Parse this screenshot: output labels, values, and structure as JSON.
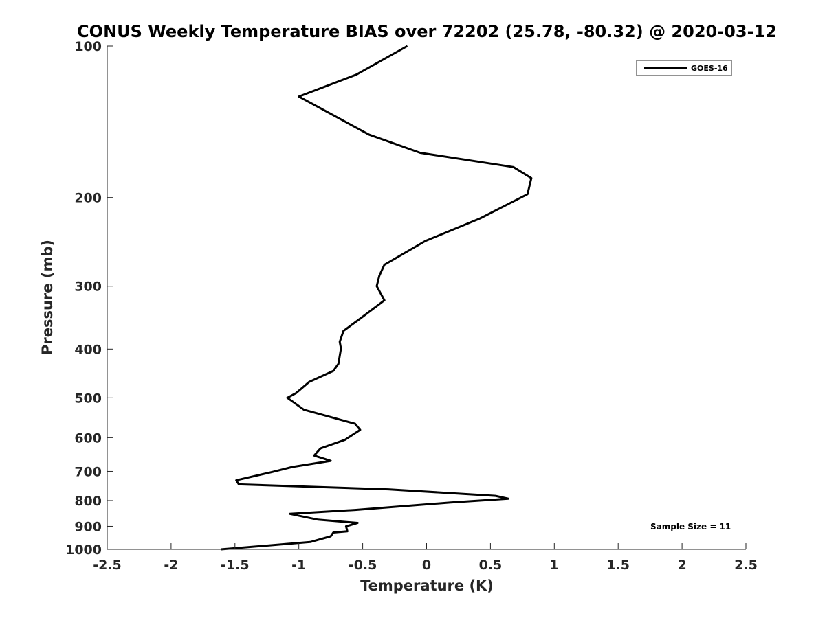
{
  "chart_data": {
    "type": "line",
    "title": "CONUS Weekly Temperature BIAS over 72202 (25.78, -80.32) @ 2020-03-12",
    "xlabel": "Temperature (K)",
    "ylabel": "Pressure (mb)",
    "xlim": [
      -2.5,
      2.5
    ],
    "ylim": [
      1000,
      100
    ],
    "y_scale": "log",
    "y_reversed": true,
    "x_ticks": [
      -2.5,
      -2,
      -1.5,
      -1,
      -0.5,
      0,
      0.5,
      1,
      1.5,
      2,
      2.5
    ],
    "x_tick_labels": [
      "-2.5",
      "-2",
      "-1.5",
      "-1",
      "-0.5",
      "0",
      "0.5",
      "1",
      "1.5",
      "2",
      "2.5"
    ],
    "y_ticks": [
      100,
      200,
      300,
      400,
      500,
      600,
      700,
      800,
      900,
      1000
    ],
    "y_tick_labels": [
      "100",
      "200",
      "300",
      "400",
      "500",
      "600",
      "700",
      "800",
      "900",
      "1000"
    ],
    "grid": false,
    "legend_position": "top-right",
    "annotation": "Sample Size = 11",
    "series": [
      {
        "name": "GOES-16",
        "color": "#000000",
        "x": [
          -0.15,
          -0.55,
          -1.0,
          -0.45,
          -0.05,
          0.68,
          0.82,
          0.79,
          0.42,
          -0.01,
          -0.33,
          -0.37,
          -0.39,
          -0.33,
          -0.52,
          -0.65,
          -0.68,
          -0.67,
          -0.69,
          -0.73,
          -0.92,
          -1.02,
          -1.09,
          -0.96,
          -0.56,
          -0.52,
          -0.64,
          -0.83,
          -0.88,
          -0.75,
          -1.05,
          -1.21,
          -1.49,
          -1.47,
          -0.3,
          0.54,
          0.64,
          0.19,
          -0.56,
          -1.07,
          -0.85,
          -0.54,
          -0.63,
          -0.62,
          -0.73,
          -0.75,
          -0.91,
          -1.61
        ],
        "y": [
          100,
          114,
          126,
          150,
          163,
          174,
          183,
          197,
          220,
          244,
          272,
          286,
          300,
          320,
          348,
          368,
          387,
          399,
          428,
          442,
          465,
          489,
          500,
          528,
          563,
          579,
          606,
          630,
          651,
          667,
          686,
          702,
          729,
          743,
          760,
          783,
          793,
          807,
          835,
          850,
          873,
          886,
          900,
          921,
          926,
          942,
          967,
          1000
        ]
      }
    ]
  }
}
